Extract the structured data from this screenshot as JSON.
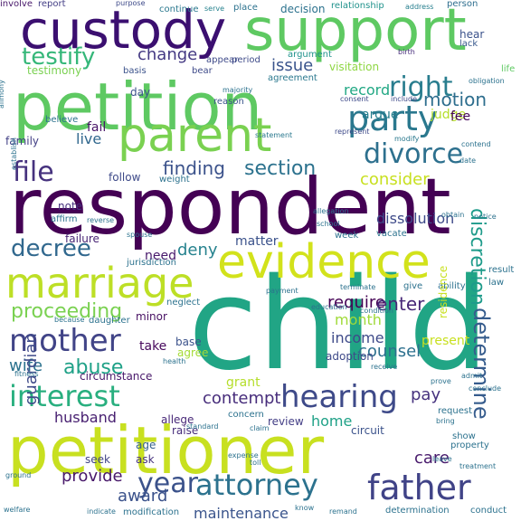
{
  "words": [
    {
      "text": "respondent",
      "color": "#440154"
    },
    {
      "text": "child",
      "color": "#21a585"
    },
    {
      "text": "petitioner",
      "color": "#c8e020"
    },
    {
      "text": "petition",
      "color": "#5ec962"
    },
    {
      "text": "support",
      "color": "#5ec962"
    },
    {
      "text": "custody",
      "color": "#3b0f70"
    },
    {
      "text": "parent",
      "color": "#7ad151"
    },
    {
      "text": "evidence",
      "color": "#d2e21b"
    },
    {
      "text": "marriage",
      "color": "#bddf26"
    },
    {
      "text": "party",
      "color": "#2a788e"
    },
    {
      "text": "father",
      "color": "#404387"
    },
    {
      "text": "hearing",
      "color": "#3e4a89"
    },
    {
      "text": "mother",
      "color": "#414487"
    },
    {
      "text": "interest",
      "color": "#29af7f"
    },
    {
      "text": "attorney",
      "color": "#2c728e"
    },
    {
      "text": "year",
      "color": "#3b528b"
    },
    {
      "text": "divorce",
      "color": "#2d708e"
    },
    {
      "text": "right",
      "color": "#287d8e"
    },
    {
      "text": "testify",
      "color": "#35b779"
    },
    {
      "text": "decree",
      "color": "#31688e"
    },
    {
      "text": "file",
      "color": "#46327e"
    },
    {
      "text": "section",
      "color": "#2c728e"
    },
    {
      "text": "determine",
      "color": "#365c8d"
    },
    {
      "text": "proceeding",
      "color": "#7ad151"
    },
    {
      "text": "abuse",
      "color": "#1fa187"
    },
    {
      "text": "award",
      "color": "#3b528b"
    },
    {
      "text": "finding",
      "color": "#3b528b"
    },
    {
      "text": "dissolution",
      "color": "#3e4a89"
    },
    {
      "text": "record",
      "color": "#22a884"
    },
    {
      "text": "issue",
      "color": "#3a548c"
    },
    {
      "text": "change",
      "color": "#443983"
    },
    {
      "text": "motion",
      "color": "#2e6e8e"
    },
    {
      "text": "consider",
      "color": "#c8e020"
    },
    {
      "text": "discretion",
      "color": "#1e9b8a"
    },
    {
      "text": "contempt",
      "color": "#472d7b"
    },
    {
      "text": "maintenance",
      "color": "#3a548c"
    },
    {
      "text": "provide",
      "color": "#48186a"
    },
    {
      "text": "deny",
      "color": "#26828e"
    },
    {
      "text": "require",
      "color": "#440154"
    },
    {
      "text": "enter",
      "color": "#482878"
    },
    {
      "text": "month",
      "color": "#a0da39"
    },
    {
      "text": "counsel",
      "color": "#2d708e"
    },
    {
      "text": "income",
      "color": "#3e4a89"
    },
    {
      "text": "husband",
      "color": "#482071"
    },
    {
      "text": "wife",
      "color": "#2c728e"
    },
    {
      "text": "guardian",
      "color": "#3e4a89"
    },
    {
      "text": "home",
      "color": "#1fa187"
    },
    {
      "text": "care",
      "color": "#481a6c"
    },
    {
      "text": "pay",
      "color": "#46327e"
    },
    {
      "text": "need",
      "color": "#481a6c"
    },
    {
      "text": "matter",
      "color": "#3b528b"
    },
    {
      "text": "grant",
      "color": "#b5de2b"
    },
    {
      "text": "live",
      "color": "#31688e"
    },
    {
      "text": "fail",
      "color": "#481467"
    },
    {
      "text": "family",
      "color": "#423f85"
    },
    {
      "text": "argue",
      "color": "#277f8e"
    },
    {
      "text": "judge",
      "color": "#b5de2b"
    },
    {
      "text": "fee",
      "color": "#450559"
    },
    {
      "text": "testimony",
      "color": "#7ad151"
    },
    {
      "text": "visitation",
      "color": "#8fd744"
    },
    {
      "text": "circumstance",
      "color": "#48186a"
    },
    {
      "text": "failure",
      "color": "#482475"
    },
    {
      "text": "note",
      "color": "#46327e"
    },
    {
      "text": "follow",
      "color": "#3e4a89"
    },
    {
      "text": "minor",
      "color": "#471063"
    },
    {
      "text": "take",
      "color": "#46085c"
    },
    {
      "text": "base",
      "color": "#3b528b"
    },
    {
      "text": "agree",
      "color": "#a5db36"
    },
    {
      "text": "present",
      "color": "#c8e020"
    },
    {
      "text": "adoption",
      "color": "#3e4a89"
    },
    {
      "text": "review",
      "color": "#433e85"
    },
    {
      "text": "circuit",
      "color": "#3b528b"
    },
    {
      "text": "seek",
      "color": "#414487"
    },
    {
      "text": "age",
      "color": "#35608d"
    },
    {
      "text": "ask",
      "color": "#46327e"
    },
    {
      "text": "raise",
      "color": "#472d7b"
    },
    {
      "text": "allege",
      "color": "#482878"
    },
    {
      "text": "day",
      "color": "#3b528b"
    },
    {
      "text": "weight",
      "color": "#2c728e"
    },
    {
      "text": "involve",
      "color": "#48186a"
    },
    {
      "text": "report",
      "color": "#433e85"
    },
    {
      "text": "purpose",
      "color": "#3e4a89"
    },
    {
      "text": "continue",
      "color": "#2a788e"
    },
    {
      "text": "serve",
      "color": "#26828e"
    },
    {
      "text": "place",
      "color": "#2c728e"
    },
    {
      "text": "decision",
      "color": "#2c728e"
    },
    {
      "text": "relationship",
      "color": "#20928c"
    },
    {
      "text": "address",
      "color": "#277f8e"
    },
    {
      "text": "person",
      "color": "#2e6e8e"
    },
    {
      "text": "hear",
      "color": "#3b528b"
    },
    {
      "text": "lack",
      "color": "#38588c"
    },
    {
      "text": "birth",
      "color": "#472d7b"
    },
    {
      "text": "life",
      "color": "#5ec962"
    },
    {
      "text": "obligation",
      "color": "#2c728e"
    },
    {
      "text": "period",
      "color": "#3e4a89"
    },
    {
      "text": "argument",
      "color": "#20928c"
    },
    {
      "text": "agreement",
      "color": "#2a788e"
    },
    {
      "text": "basis",
      "color": "#3b528b"
    },
    {
      "text": "bear",
      "color": "#3e4a89"
    },
    {
      "text": "appear",
      "color": "#3e4a89"
    },
    {
      "text": "majority",
      "color": "#2c728e"
    },
    {
      "text": "reason",
      "color": "#3a548c"
    },
    {
      "text": "consent",
      "color": "#3e4a89"
    },
    {
      "text": "include",
      "color": "#3e4a89"
    },
    {
      "text": "believe",
      "color": "#2c728e"
    },
    {
      "text": "statement",
      "color": "#2a788e"
    },
    {
      "text": "represent",
      "color": "#3e4a89"
    },
    {
      "text": "date",
      "color": "#2c728e"
    },
    {
      "text": "modify",
      "color": "#2a788e"
    },
    {
      "text": "contend",
      "color": "#2c728e"
    },
    {
      "text": "establish",
      "color": "#2c728e"
    },
    {
      "text": "affirm",
      "color": "#2c728e"
    },
    {
      "text": "reverse",
      "color": "#2c728e"
    },
    {
      "text": "spouse",
      "color": "#2c728e"
    },
    {
      "text": "school",
      "color": "#2c728e"
    },
    {
      "text": "allegation",
      "color": "#2c728e"
    },
    {
      "text": "week",
      "color": "#2c728e"
    },
    {
      "text": "vacate",
      "color": "#2c728e"
    },
    {
      "text": "obtain",
      "color": "#2c728e"
    },
    {
      "text": "notice",
      "color": "#2c728e"
    },
    {
      "text": "jurisdiction",
      "color": "#2c728e"
    },
    {
      "text": "payment",
      "color": "#2c728e"
    },
    {
      "text": "terminate",
      "color": "#2c728e"
    },
    {
      "text": "give",
      "color": "#2c728e"
    },
    {
      "text": "ability",
      "color": "#2c728e"
    },
    {
      "text": "law",
      "color": "#2c728e"
    },
    {
      "text": "result",
      "color": "#2c728e"
    },
    {
      "text": "neglect",
      "color": "#2c728e"
    },
    {
      "text": "condition",
      "color": "#2c728e"
    },
    {
      "text": "education",
      "color": "#2c728e"
    },
    {
      "text": "daughter",
      "color": "#2c728e"
    },
    {
      "text": "because",
      "color": "#2c728e"
    },
    {
      "text": "health",
      "color": "#2c728e"
    },
    {
      "text": "fitness",
      "color": "#2c728e"
    },
    {
      "text": "receive",
      "color": "#2c728e"
    },
    {
      "text": "residence",
      "color": "#c8e020"
    },
    {
      "text": "admit",
      "color": "#2c728e"
    },
    {
      "text": "conclude",
      "color": "#2c728e"
    },
    {
      "text": "prove",
      "color": "#2c728e"
    },
    {
      "text": "request",
      "color": "#2c728e"
    },
    {
      "text": "bring",
      "color": "#2c728e"
    },
    {
      "text": "show",
      "color": "#2c728e"
    },
    {
      "text": "concern",
      "color": "#2c728e"
    },
    {
      "text": "standard",
      "color": "#2c728e"
    },
    {
      "text": "claim",
      "color": "#2c728e"
    },
    {
      "text": "property",
      "color": "#2c728e"
    },
    {
      "text": "leave",
      "color": "#2c728e"
    },
    {
      "text": "treatment",
      "color": "#2c728e"
    },
    {
      "text": "expense",
      "color": "#2c728e"
    },
    {
      "text": "toll",
      "color": "#2c728e"
    },
    {
      "text": "remand",
      "color": "#2c728e"
    },
    {
      "text": "determination",
      "color": "#2c728e"
    },
    {
      "text": "conduct",
      "color": "#2c728e"
    },
    {
      "text": "indicate",
      "color": "#2c728e"
    },
    {
      "text": "modification",
      "color": "#2c728e"
    },
    {
      "text": "know",
      "color": "#2c728e"
    },
    {
      "text": "ground",
      "color": "#2c728e"
    },
    {
      "text": "welfare",
      "color": "#2c728e"
    },
    {
      "text": "alimony",
      "color": "#2c728e"
    }
  ]
}
